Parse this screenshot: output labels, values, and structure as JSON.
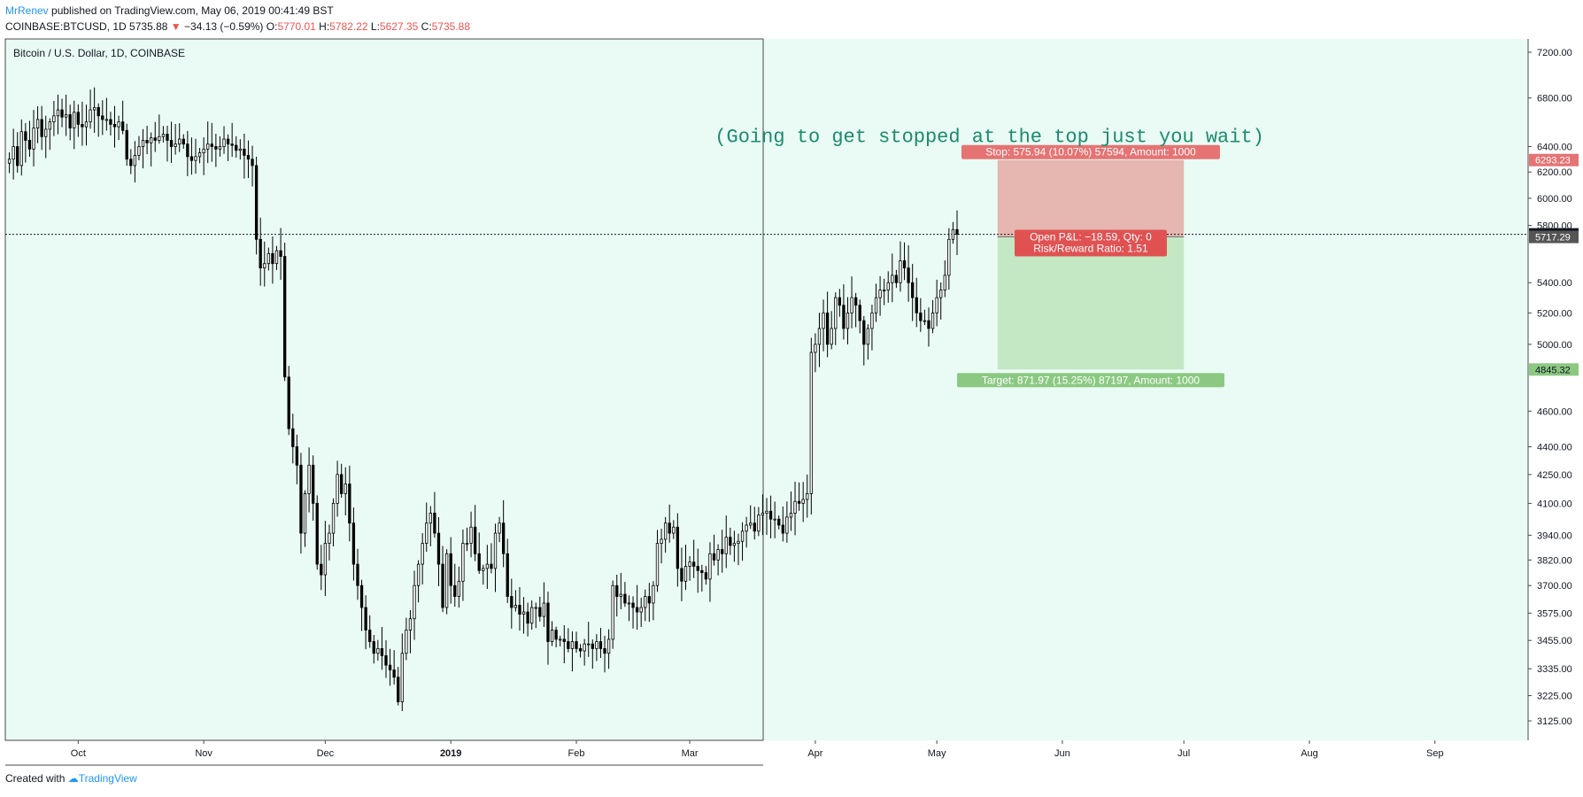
{
  "header": {
    "author": "MrRenev",
    "published": "published on TradingView.com, May 06, 2019 00:41:49 BST",
    "symbol": "COINBASE:BTCUSD, 1D",
    "last": "5735.88",
    "change_arrow": "▼",
    "change": "−34.13 (−0.59%)",
    "o_label": "O:",
    "o": "5770.01",
    "h_label": "H:",
    "h": "5782.22",
    "l_label": "L:",
    "l": "5627.35",
    "c_label": "C:",
    "c": "5735.88"
  },
  "footer": {
    "created": "Created with",
    "brand": "TradingView"
  },
  "colors": {
    "chart_bg": "#e9fbf4",
    "stop_zone": "#e6b6b0",
    "target_zone": "#c4e8c4",
    "stop_label": "#e57373",
    "target_label": "#8bc982",
    "pnl_label": "#e05252",
    "annotation": "#1d8a6e"
  },
  "chart_data": {
    "type": "candlestick",
    "title": "Bitcoin / U.S. Dollar, 1D, COINBASE",
    "scale": "log",
    "grid": false,
    "ylim": [
      3050,
      7320
    ],
    "xlim": [
      "2018-09-13",
      "2019-09-24"
    ],
    "y_ticks": [
      "7200.00",
      "6800.00",
      "6400.00",
      "6200.00",
      "6000.00",
      "5800.00",
      "5400.00",
      "5200.00",
      "5000.00",
      "4600.00",
      "4400.00",
      "4250.00",
      "4100.00",
      "3940.00",
      "3820.00",
      "3700.00",
      "3575.00",
      "3455.00",
      "3335.00",
      "3225.00",
      "3125.00"
    ],
    "x_ticks": [
      {
        "label": "Oct",
        "date": "2018-10-01"
      },
      {
        "label": "Nov",
        "date": "2018-11-01"
      },
      {
        "label": "Dec",
        "date": "2018-12-01"
      },
      {
        "label": "2019",
        "date": "2019-01-01"
      },
      {
        "label": "Feb",
        "date": "2019-02-01"
      },
      {
        "label": "Mar",
        "date": "2019-03-01"
      },
      {
        "label": "Apr",
        "date": "2019-04-01"
      },
      {
        "label": "May",
        "date": "2019-05-01"
      },
      {
        "label": "Jun",
        "date": "2019-06-01"
      },
      {
        "label": "Jul",
        "date": "2019-07-01"
      },
      {
        "label": "Aug",
        "date": "2019-08-01"
      },
      {
        "label": "Sep",
        "date": "2019-09-01"
      }
    ],
    "start_date": "2018-09-14",
    "closes": [
      6300,
      6400,
      6250,
      6520,
      6450,
      6380,
      6550,
      6620,
      6480,
      6540,
      6600,
      6650,
      6700,
      6640,
      6660,
      6550,
      6680,
      6580,
      6560,
      6600,
      6700,
      6720,
      6650,
      6620,
      6620,
      6580,
      6560,
      6600,
      6530,
      6300,
      6250,
      6330,
      6400,
      6450,
      6430,
      6470,
      6450,
      6480,
      6500,
      6450,
      6400,
      6420,
      6460,
      6420,
      6320,
      6290,
      6320,
      6350,
      6380,
      6420,
      6400,
      6380,
      6400,
      6460,
      6420,
      6410,
      6370,
      6380,
      6330,
      6300,
      6250,
      5700,
      5500,
      5530,
      5600,
      5530,
      5620,
      5580,
      4800,
      4500,
      4400,
      4300,
      3950,
      4150,
      4300,
      4100,
      3800,
      3750,
      3900,
      3950,
      4100,
      4250,
      4150,
      4200,
      4000,
      3800,
      3700,
      3600,
      3500,
      3450,
      3400,
      3420,
      3390,
      3350,
      3330,
      3300,
      3200,
      3400,
      3500,
      3550,
      3700,
      3800,
      3900,
      4000,
      4050,
      3950,
      3800,
      3600,
      3850,
      3700,
      3650,
      3720,
      3900,
      3900,
      3980,
      3850,
      3770,
      3780,
      3800,
      3780,
      3950,
      4000,
      3850,
      3650,
      3600,
      3610,
      3570,
      3580,
      3530,
      3600,
      3600,
      3560,
      3620,
      3450,
      3500,
      3460,
      3460,
      3450,
      3420,
      3450,
      3420,
      3410,
      3440,
      3440,
      3420,
      3450,
      3420,
      3400,
      3460,
      3700,
      3650,
      3660,
      3620,
      3620,
      3600,
      3580,
      3600,
      3650,
      3620,
      3700,
      3900,
      3920,
      4000,
      3950,
      3980,
      3780,
      3720,
      3790,
      3810,
      3790,
      3770,
      3760,
      3730,
      3850,
      3820,
      3870,
      3850,
      3930,
      3890,
      3900,
      3910,
      3960,
      3990,
      4000,
      3960,
      4040,
      4050,
      4060,
      4020,
      4020,
      3990,
      3950,
      4030,
      4050,
      4110,
      4100,
      4120,
      4150,
      4950,
      5000,
      5100,
      5200,
      5000,
      5100,
      5300,
      5250,
      5100,
      5200,
      5300,
      5250,
      5150,
      5000,
      5100,
      5200,
      5300,
      5350,
      5350,
      5400,
      5450,
      5400,
      5550,
      5500,
      5400,
      5300,
      5200,
      5150,
      5150,
      5100,
      5200,
      5300,
      5350,
      5450,
      5700,
      5770,
      5735.88
    ],
    "position": {
      "type": "short",
      "start_date": "2019-05-16",
      "end_date": "2019-07-01",
      "entry": 5717.29,
      "stop": 6293.23,
      "target": 4845.32,
      "last_price": 5735.88,
      "stop_label": "Stop: 575.94 (10.07%) 57594, Amount: 1000",
      "target_label": "Target: 871.97 (15.25%) 87197, Amount: 1000",
      "pnl_label": "Open P&L: −18.59, Qty: 0",
      "rr_label": "Risk/Reward Ratio: 1.51"
    },
    "price_labels": [
      {
        "price": 6293.23,
        "text": "6293.23",
        "bg": "#e57373",
        "fg": "#ffffff"
      },
      {
        "price": 5735.88,
        "text": "5735.88",
        "bg": "#131722",
        "fg": "#ffffff"
      },
      {
        "price": 5717.29,
        "text": "5717.29",
        "bg": "#555555",
        "fg": "#ffffff"
      },
      {
        "price": 4845.32,
        "text": "4845.32",
        "bg": "#8bc982",
        "fg": "#131722"
      }
    ],
    "annotation": {
      "text": "(Going to get stopped at the top just you wait)",
      "date": "2019-05-14",
      "price": 6480
    }
  }
}
